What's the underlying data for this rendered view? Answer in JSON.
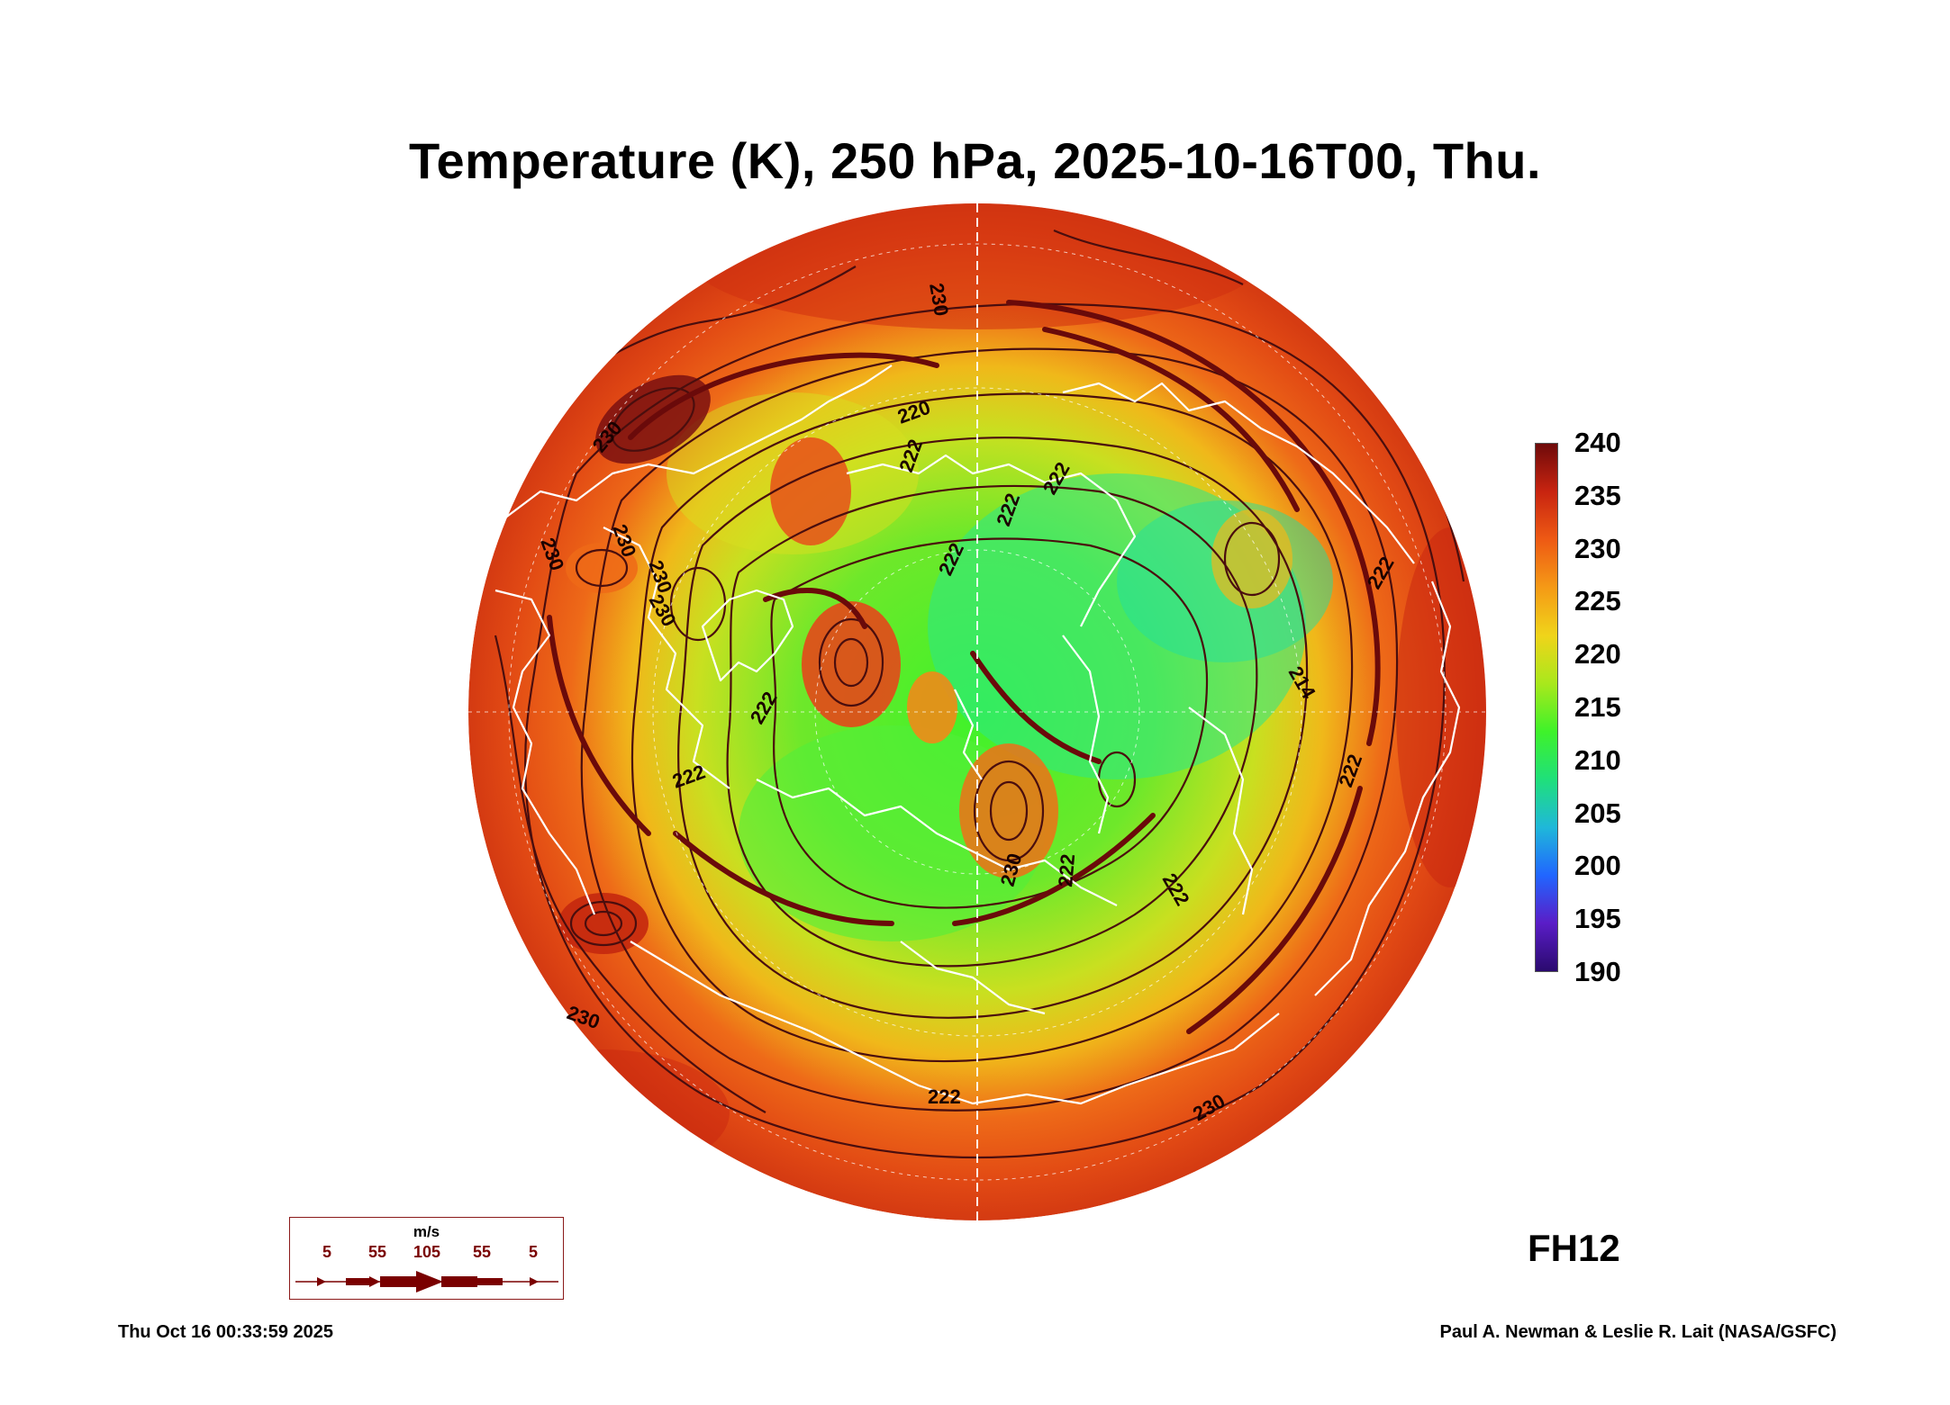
{
  "title": "Temperature (K), 250 hPa, 2025-10-16T00, Thu.",
  "map": {
    "projection": "north polar stereographic",
    "contour_labels": [
      "230",
      "230",
      "230",
      "230",
      "220",
      "222",
      "222",
      "222",
      "222",
      "214",
      "222",
      "222",
      "230",
      "230",
      "222",
      "222",
      "222",
      "230",
      "230",
      "222",
      "230",
      "222"
    ]
  },
  "colorbar": {
    "unit": "K",
    "ticks": [
      "240",
      "235",
      "230",
      "225",
      "220",
      "215",
      "210",
      "205",
      "200",
      "195",
      "190"
    ],
    "min": 190,
    "max": 240,
    "colors": [
      "#2a0a6e",
      "#5a1dc7",
      "#2166ff",
      "#1fb8d9",
      "#1fe07a",
      "#3ff22a",
      "#a9e81c",
      "#f0d41a",
      "#f59a16",
      "#ee5a14",
      "#c82410",
      "#6e0a0a"
    ]
  },
  "wind_legend": {
    "unit": "m/s",
    "values": [
      "5",
      "55",
      "105",
      "55",
      "5"
    ]
  },
  "forecast_hour": "FH12",
  "footer": {
    "timestamp": "Thu Oct 16 00:33:59 2025",
    "credit": "Paul A. Newman & Leslie R. Lait (NASA/GSFC)"
  }
}
